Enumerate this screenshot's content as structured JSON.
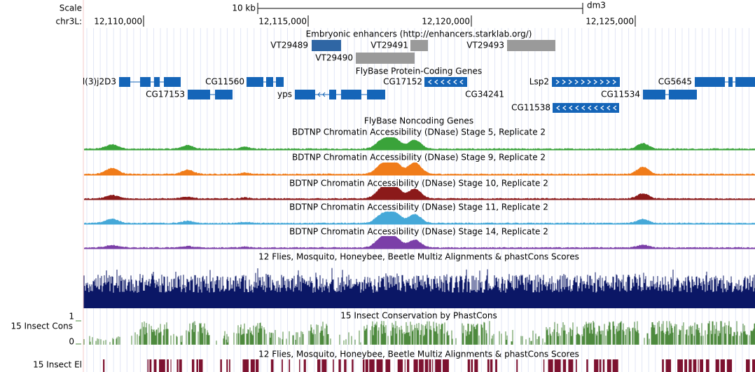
{
  "header": {
    "scale_label": "Scale",
    "scale_size": "10 kb",
    "assembly": "dm3",
    "chrom": "chr3L:",
    "positions": [
      "12,110,000",
      "12,115,000",
      "12,120,000",
      "12,125,000"
    ]
  },
  "enhancers": {
    "title": "Embryonic enhancers (http://enhancers.starklab.org/)",
    "features": [
      {
        "name": "VT29489",
        "color": "#2f66a4",
        "label_color": "#1a5fb0"
      },
      {
        "name": "VT29491",
        "color": "#9a9a9a",
        "label_color": "#9a9a9a"
      },
      {
        "name": "VT29493",
        "color": "#9a9a9a",
        "label_color": "#9a9a9a"
      },
      {
        "name": "VT29490",
        "color": "#9a9a9a",
        "label_color": "#9a9a9a"
      }
    ]
  },
  "coding_genes": {
    "title": "FlyBase Protein-Coding Genes",
    "color": "#1565b8",
    "genes": [
      "l(3)j2D3",
      "CG17153",
      "CG11560",
      "yps",
      "CG17152",
      "CG34241",
      "Lsp2",
      "CG11538",
      "CG11534",
      "CG5645"
    ]
  },
  "noncoding_genes": {
    "title": "FlyBase Noncoding Genes",
    "color": "#3c8ed0"
  },
  "dnase_tracks": [
    {
      "title": "BDTNP Chromatin Accessibility (DNase) Stage 5, Replicate 2",
      "color": "#3aa33a"
    },
    {
      "title": "BDTNP Chromatin Accessibility (DNase) Stage 9, Replicate 2",
      "color": "#f07c1a"
    },
    {
      "title": "BDTNP Chromatin Accessibility (DNase) Stage 10, Replicate 2",
      "color": "#8b1a1a"
    },
    {
      "title": "BDTNP Chromatin Accessibility (DNase) Stage 11, Replicate 2",
      "color": "#45a8d8"
    },
    {
      "title": "BDTNP Chromatin Accessibility (DNase) Stage 14, Replicate 2",
      "color": "#7b3fa8"
    }
  ],
  "multiz": {
    "title": "12 Flies, Mosquito, Honeybee, Beetle Multiz Alignments & phastCons Scores",
    "color": "#0b1766"
  },
  "phastcons": {
    "title": "15 Insect Conservation by PhastCons",
    "side_label": "15 Insect Cons",
    "axis_max": 1,
    "axis_min": 0,
    "color": "#4e8a3e"
  },
  "elements": {
    "title": "12 Flies, Mosquito, Honeybee, Beetle Multiz Alignments & phastCons Scores",
    "side_label": "15 Insect El",
    "color": "#7d1230"
  }
}
